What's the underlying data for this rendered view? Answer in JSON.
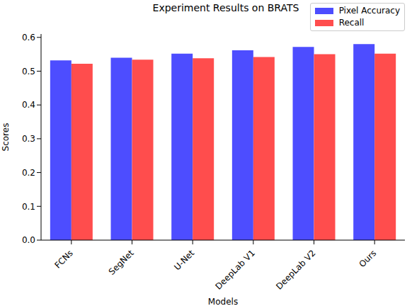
{
  "chart_data": {
    "type": "bar",
    "title": "Experiment Results on BRATS",
    "x_label": "Models",
    "y_label": "Scores",
    "categories": [
      "FCNs",
      "SegNet",
      "U-Net",
      "DeepLab V1",
      "DeepLab V2",
      "Ours"
    ],
    "series": [
      {
        "name": "Pixel Accuracy",
        "color": "#4d4dff",
        "values": [
          0.532,
          0.54,
          0.552,
          0.562,
          0.572,
          0.58
        ]
      },
      {
        "name": "Recall",
        "color": "#ff4d4d",
        "values": [
          0.522,
          0.534,
          0.538,
          0.542,
          0.55,
          0.552
        ]
      }
    ],
    "ylim": [
      0,
      0.61
    ],
    "yticks": [
      {
        "value": 0,
        "label": "0.0"
      },
      {
        "value": 0.1,
        "label": "0.1"
      },
      {
        "value": 0.2,
        "label": "0.2"
      },
      {
        "value": 0.3,
        "label": "0.3"
      },
      {
        "value": 0.4,
        "label": "0.4"
      },
      {
        "value": 0.5,
        "label": "0.5"
      },
      {
        "value": 0.6,
        "label": "0.6"
      }
    ],
    "grid": false,
    "legend": "upper right"
  }
}
